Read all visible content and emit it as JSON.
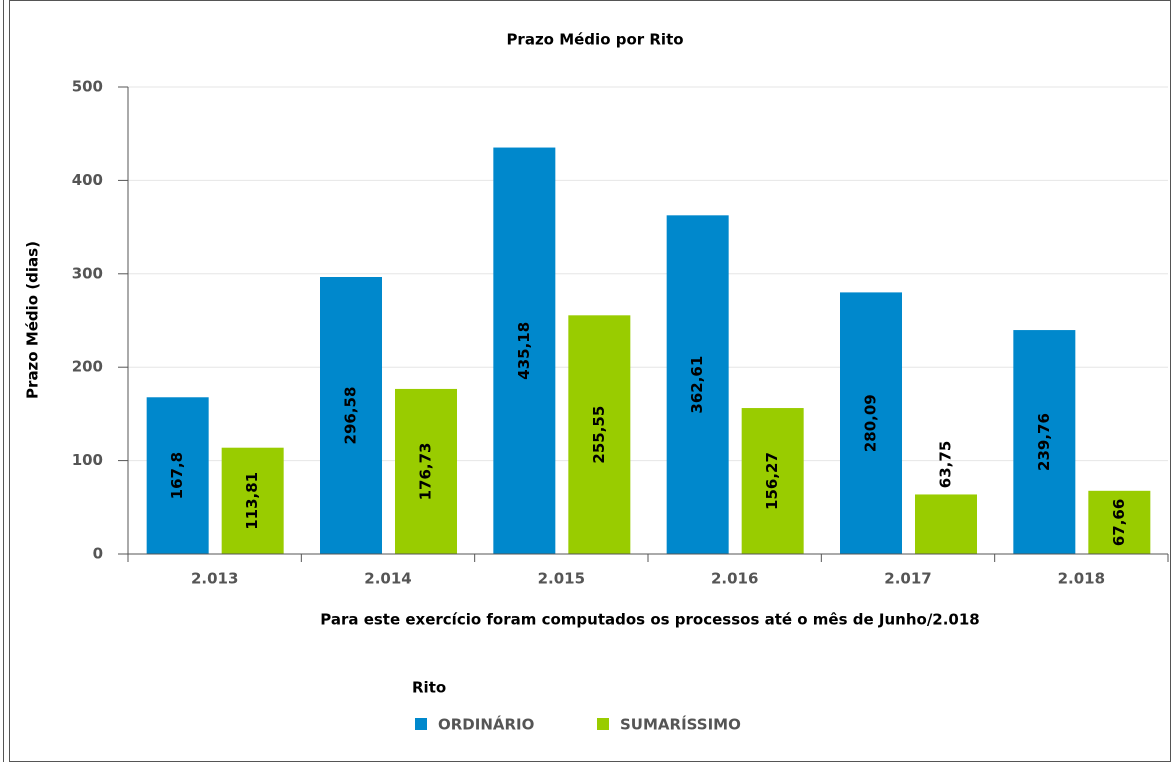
{
  "chart_data": {
    "type": "bar",
    "title": "Prazo Médio por Rito",
    "y_label": "Prazo Médio (dias)",
    "x_label": "Para este exercício foram computados os processos até o mês de Junho/2.018",
    "legend_title": "Rito",
    "categories": [
      "2.013",
      "2.014",
      "2.015",
      "2.016",
      "2.017",
      "2.018"
    ],
    "series": [
      {
        "name": "ORDINÁRIO",
        "color": "#0088cc",
        "values": [
          167.8,
          296.58,
          435.18,
          362.61,
          280.09,
          239.76
        ],
        "value_labels": [
          "167,8",
          "296,58",
          "435,18",
          "362,61",
          "280,09",
          "239,76"
        ]
      },
      {
        "name": "SUMARÍSSIMO",
        "color": "#99cc00",
        "values": [
          113.81,
          176.73,
          255.55,
          156.27,
          63.75,
          67.66
        ],
        "value_labels": [
          "113,81",
          "176,73",
          "255,55",
          "156,27",
          "63,75",
          "67,66"
        ]
      }
    ],
    "ylim": [
      0,
      500
    ],
    "yticks": [
      0,
      100,
      200,
      300,
      400,
      500
    ],
    "grid": true
  }
}
